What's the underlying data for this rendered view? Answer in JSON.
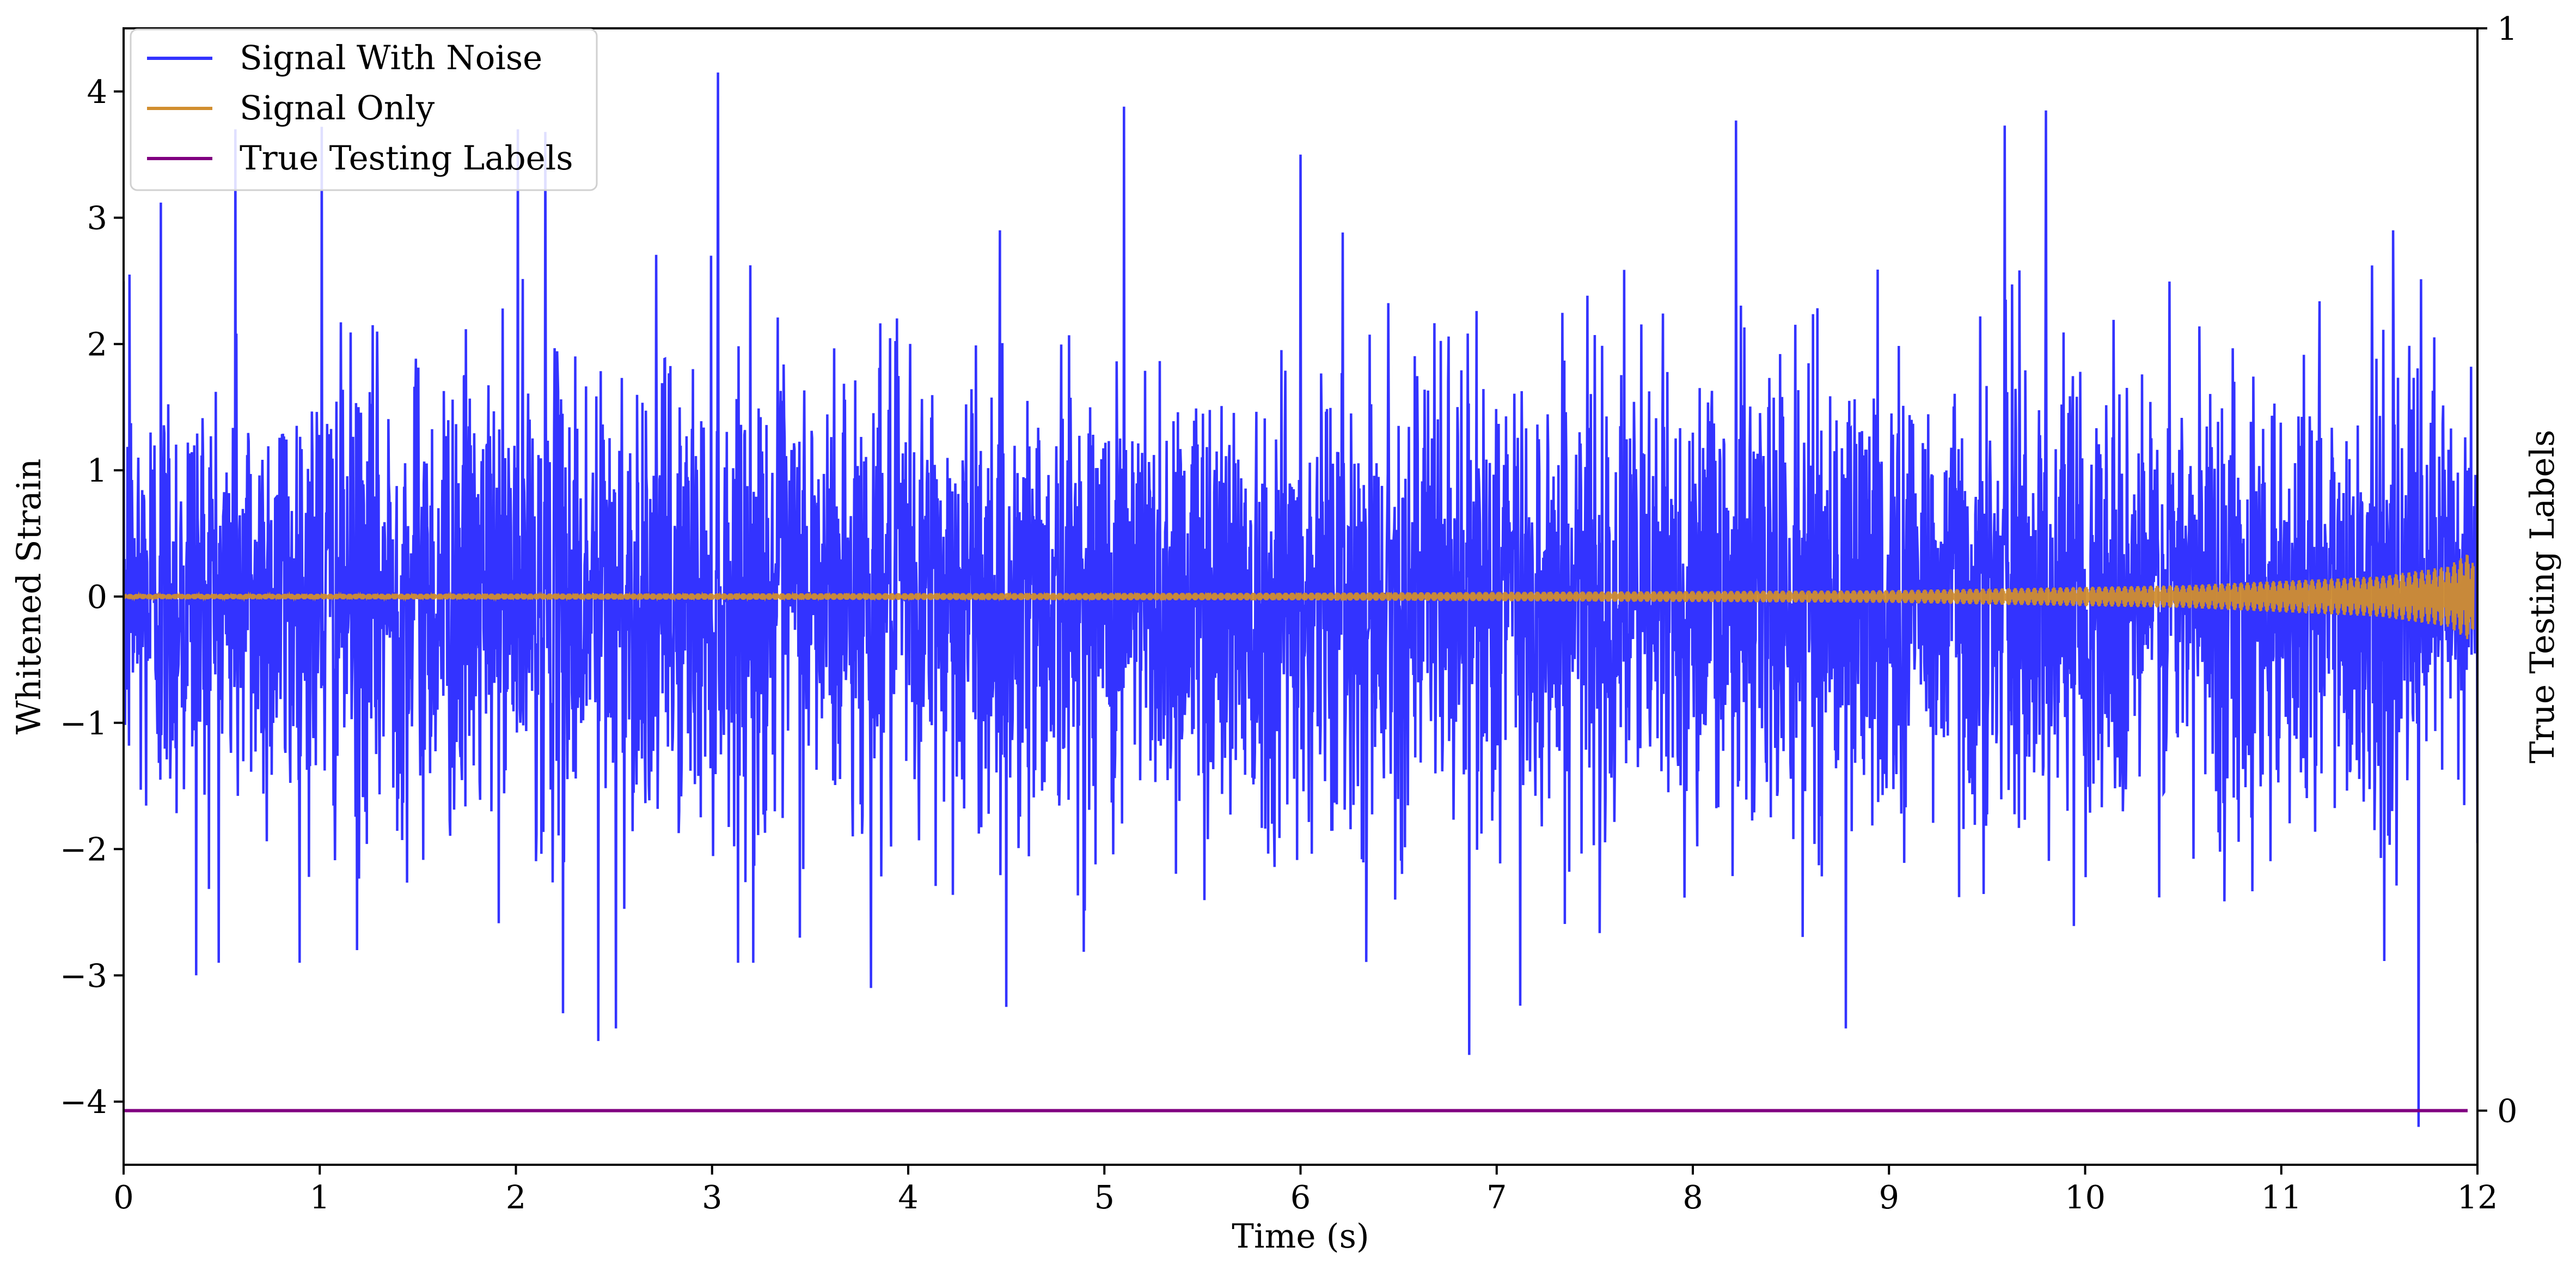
{
  "chart_data": {
    "type": "line",
    "xlabel": "Time (s)",
    "ylabel": "Whitened Strain",
    "ylabel_right": "True Testing Labels",
    "xlim": [
      0,
      12
    ],
    "ylim": [
      -4.5,
      4.5
    ],
    "ylim_right": [
      -0.05,
      1.0
    ],
    "x_ticks": [
      0,
      1,
      2,
      3,
      4,
      5,
      6,
      7,
      8,
      9,
      10,
      11,
      12
    ],
    "y_ticks": [
      -4,
      -3,
      -2,
      -1,
      0,
      1,
      2,
      3,
      4
    ],
    "y_tick_labels": [
      "−4",
      "−3",
      "−2",
      "−1",
      "0",
      "1",
      "2",
      "3",
      "4"
    ],
    "y_ticks_right": [
      0,
      1
    ],
    "legend_position": "upper-left",
    "grid": false,
    "series": [
      {
        "name": "Signal With Noise",
        "color": "#3333ff",
        "axis": "left",
        "description_stats": {
          "typical_std": 0.9,
          "max": 4.15,
          "min": -4.2
        },
        "peaks": [
          [
            0.03,
            2.55
          ],
          [
            0.19,
            3.12
          ],
          [
            0.37,
            -3.0
          ],
          [
            0.57,
            3.7
          ],
          [
            1.01,
            3.72
          ],
          [
            1.19,
            -2.8
          ],
          [
            2.01,
            3.7
          ],
          [
            2.15,
            3.68
          ],
          [
            2.24,
            -3.3
          ],
          [
            2.42,
            -3.52
          ],
          [
            2.51,
            -3.42
          ],
          [
            3.03,
            4.15
          ],
          [
            3.21,
            -2.9
          ],
          [
            3.81,
            -3.1
          ],
          [
            4.5,
            -3.25
          ],
          [
            5.1,
            3.88
          ],
          [
            6.0,
            3.5
          ],
          [
            6.86,
            -3.63
          ],
          [
            7.12,
            -3.24
          ],
          [
            8.22,
            3.77
          ],
          [
            8.78,
            -3.42
          ],
          [
            9.59,
            3.73
          ],
          [
            9.8,
            3.85
          ],
          [
            11.7,
            -4.2
          ]
        ]
      },
      {
        "name": "Signal Only",
        "color": "#d18e2f",
        "axis": "left",
        "amplitude_profile": [
          [
            0,
            0.02
          ],
          [
            6,
            0.03
          ],
          [
            9,
            0.05
          ],
          [
            10.5,
            0.09
          ],
          [
            11.5,
            0.16
          ],
          [
            11.85,
            0.24
          ],
          [
            11.97,
            0.36
          ],
          [
            12,
            0.0
          ]
        ]
      },
      {
        "name": "True Testing Labels",
        "color": "#800080",
        "axis": "right",
        "x": [
          0,
          11.95
        ],
        "values": [
          0,
          0
        ]
      }
    ]
  }
}
